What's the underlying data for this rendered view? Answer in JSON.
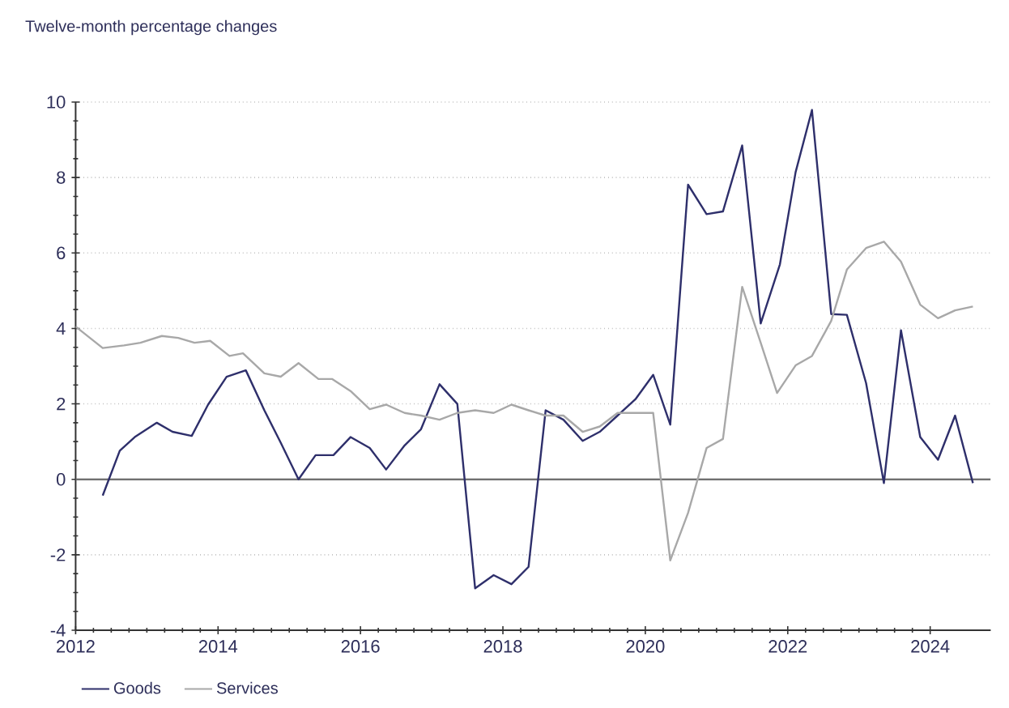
{
  "chart_data": {
    "type": "line",
    "title": "Twelve-month percentage changes",
    "series": [
      {
        "name": "Goods",
        "color": "#2e2f6b",
        "x": [
          2012.38,
          2012.62,
          2012.83,
          2013.14,
          2013.36,
          2013.63,
          2013.86,
          2014.12,
          2014.39,
          2014.65,
          2014.88,
          2015.13,
          2015.37,
          2015.62,
          2015.86,
          2016.13,
          2016.36,
          2016.62,
          2016.85,
          2017.11,
          2017.36,
          2017.61,
          2017.87,
          2018.12,
          2018.36,
          2018.6,
          2018.85,
          2019.12,
          2019.36,
          2019.61,
          2019.86,
          2020.11,
          2020.35,
          2020.6,
          2020.86,
          2021.09,
          2021.36,
          2021.62,
          2021.89,
          2022.11,
          2022.34,
          2022.61,
          2022.83,
          2023.1,
          2023.35,
          2023.59,
          2023.86,
          2024.11,
          2024.35,
          2024.6
        ],
        "values": [
          -0.43,
          0.76,
          1.12,
          1.5,
          1.26,
          1.15,
          1.98,
          2.72,
          2.89,
          1.83,
          0.97,
          0.0,
          0.64,
          0.64,
          1.12,
          0.83,
          0.26,
          0.9,
          1.33,
          2.52,
          2.0,
          -2.89,
          -2.54,
          -2.78,
          -2.32,
          1.83,
          1.58,
          1.02,
          1.26,
          1.69,
          2.12,
          2.77,
          1.45,
          7.81,
          7.03,
          7.1,
          8.85,
          4.13,
          5.7,
          8.14,
          9.79,
          4.38,
          4.36,
          2.55,
          -0.1,
          3.95,
          1.12,
          0.52,
          1.69,
          -0.1
        ]
      },
      {
        "name": "Services",
        "color": "#a8a8a8",
        "x": [
          2012.0,
          2012.38,
          2012.68,
          2012.91,
          2013.21,
          2013.44,
          2013.67,
          2013.89,
          2014.16,
          2014.35,
          2014.65,
          2014.88,
          2015.13,
          2015.41,
          2015.6,
          2015.86,
          2016.13,
          2016.36,
          2016.62,
          2016.85,
          2017.11,
          2017.36,
          2017.61,
          2017.87,
          2018.12,
          2018.36,
          2018.6,
          2018.85,
          2019.12,
          2019.36,
          2019.61,
          2019.86,
          2020.11,
          2020.35,
          2020.6,
          2020.86,
          2021.09,
          2021.36,
          2021.62,
          2021.85,
          2022.11,
          2022.34,
          2022.61,
          2022.83,
          2023.1,
          2023.35,
          2023.59,
          2023.86,
          2024.11,
          2024.35,
          2024.6
        ],
        "values": [
          4.05,
          3.48,
          3.55,
          3.62,
          3.8,
          3.75,
          3.62,
          3.67,
          3.27,
          3.34,
          2.81,
          2.72,
          3.08,
          2.66,
          2.66,
          2.34,
          1.86,
          1.98,
          1.76,
          1.69,
          1.58,
          1.76,
          1.83,
          1.76,
          1.98,
          1.83,
          1.69,
          1.69,
          1.26,
          1.4,
          1.76,
          1.76,
          1.76,
          -2.15,
          -0.89,
          0.83,
          1.07,
          5.1,
          3.62,
          2.29,
          3.02,
          3.27,
          4.2,
          5.56,
          6.13,
          6.3,
          5.77,
          4.63,
          4.27,
          4.48,
          4.58
        ]
      }
    ],
    "xlim": [
      2012,
      2024.85
    ],
    "ylim": [
      -4,
      10
    ],
    "xticks": [
      2012,
      2014,
      2016,
      2018,
      2020,
      2022,
      2024
    ],
    "yticks": [
      -4,
      -2,
      0,
      2,
      4,
      6,
      8,
      10
    ],
    "grid": "y",
    "legend": "bottom left",
    "marker": "none",
    "line_style": "solid",
    "ref_lines": [
      {
        "axis": "y",
        "value": 0,
        "color": "#707070"
      }
    ]
  }
}
